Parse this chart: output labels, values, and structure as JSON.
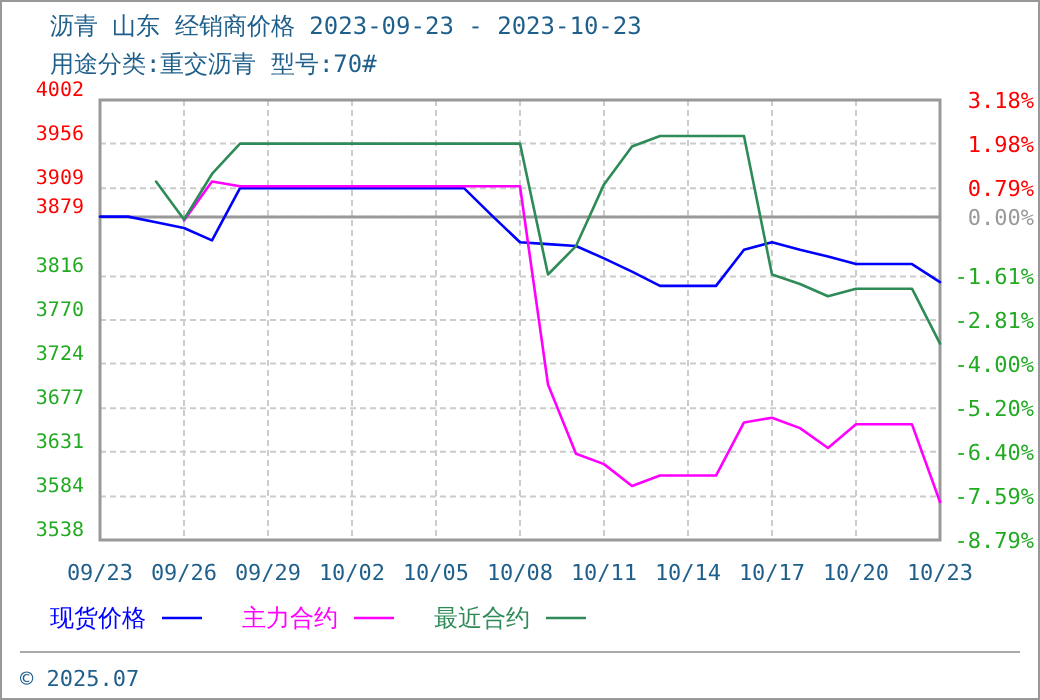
{
  "chart_data": {
    "type": "line",
    "title": "沥青 山东 经销商价格 2023-09-23 - 2023-10-23",
    "subtitle": "用途分类:重交沥青 型号:70#",
    "annotations": [
      "© 2025.07"
    ],
    "x": [
      "2023-09-23",
      "2023-09-24",
      "2023-09-25",
      "2023-09-26",
      "2023-09-27",
      "2023-09-28",
      "2023-09-29",
      "2023-09-30",
      "2023-10-01",
      "2023-10-02",
      "2023-10-03",
      "2023-10-04",
      "2023-10-05",
      "2023-10-06",
      "2023-10-07",
      "2023-10-08",
      "2023-10-09",
      "2023-10-10",
      "2023-10-11",
      "2023-10-12",
      "2023-10-13",
      "2023-10-14",
      "2023-10-15",
      "2023-10-16",
      "2023-10-17",
      "2023-10-18",
      "2023-10-19",
      "2023-10-20",
      "2023-10-21",
      "2023-10-22",
      "2023-10-23"
    ],
    "series": [
      {
        "name": "现货价格",
        "color": "#0000ff",
        "values": [
          3879,
          3879,
          3873,
          3867,
          3854,
          3909,
          3909,
          3909,
          3909,
          3909,
          3909,
          3909,
          3909,
          3909,
          3880,
          3852,
          3850,
          3848,
          3835,
          3821,
          3806,
          3806,
          3806,
          3844,
          3852,
          3844,
          3837,
          3829,
          3829,
          3829,
          3810
        ]
      },
      {
        "name": "主力合约",
        "color": "#ff00ff",
        "values": [
          null,
          null,
          null,
          3875,
          3916,
          3911,
          3911,
          3911,
          3911,
          3911,
          3911,
          3911,
          3911,
          3911,
          3911,
          3911,
          3702,
          3629,
          3618,
          3595,
          3606,
          3606,
          3606,
          3662,
          3667,
          3656,
          3635,
          3660,
          3660,
          3660,
          3578
        ]
      },
      {
        "name": "最近合约",
        "color": "#2e8b57",
        "values": [
          null,
          null,
          3916,
          3876,
          3924,
          3956,
          3956,
          3956,
          3956,
          3956,
          3956,
          3956,
          3956,
          3956,
          3956,
          3956,
          3818,
          3848,
          3913,
          3953,
          3964,
          3964,
          3964,
          3964,
          3818,
          3808,
          3795,
          3803,
          3803,
          3803,
          3745
        ]
      }
    ],
    "xlim": [
      "2023-09-23",
      "2023-10-23"
    ],
    "xticks": [
      {
        "value": "2023-09-23",
        "label": "09/23"
      },
      {
        "value": "2023-09-26",
        "label": "09/26"
      },
      {
        "value": "2023-09-29",
        "label": "09/29"
      },
      {
        "value": "2023-10-02",
        "label": "10/02"
      },
      {
        "value": "2023-10-05",
        "label": "10/05"
      },
      {
        "value": "2023-10-08",
        "label": "10/08"
      },
      {
        "value": "2023-10-11",
        "label": "10/11"
      },
      {
        "value": "2023-10-14",
        "label": "10/14"
      },
      {
        "value": "2023-10-17",
        "label": "10/17"
      },
      {
        "value": "2023-10-20",
        "label": "10/20"
      },
      {
        "value": "2023-10-23",
        "label": "10/23"
      }
    ],
    "ylim": [
      3538,
      4002
    ],
    "yticks": [
      3538,
      3584,
      3631,
      3677,
      3724,
      3770,
      3816,
      3879,
      3909,
      3956,
      4002
    ],
    "y2lim": [
      -8.79,
      3.18
    ],
    "y2ticks": [
      {
        "value": -8.79,
        "label": "-8.79%"
      },
      {
        "value": -7.59,
        "label": "-7.59%"
      },
      {
        "value": -6.4,
        "label": "-6.40%"
      },
      {
        "value": -5.2,
        "label": "-5.20%"
      },
      {
        "value": -4.0,
        "label": "-4.00%"
      },
      {
        "value": -2.81,
        "label": "-2.81%"
      },
      {
        "value": -1.61,
        "label": "-1.61%"
      },
      {
        "value": 0,
        "label": "0.00%"
      },
      {
        "value": 0.79,
        "label": "0.79%"
      },
      {
        "value": 1.98,
        "label": "1.98%"
      },
      {
        "value": 3.18,
        "label": "3.18%"
      }
    ],
    "ref_lines": [
      {
        "axis": "y2",
        "value": 0,
        "color": "#999999"
      }
    ],
    "grid": true,
    "legend": "bottom",
    "marker": "none",
    "line_style": "solid"
  }
}
